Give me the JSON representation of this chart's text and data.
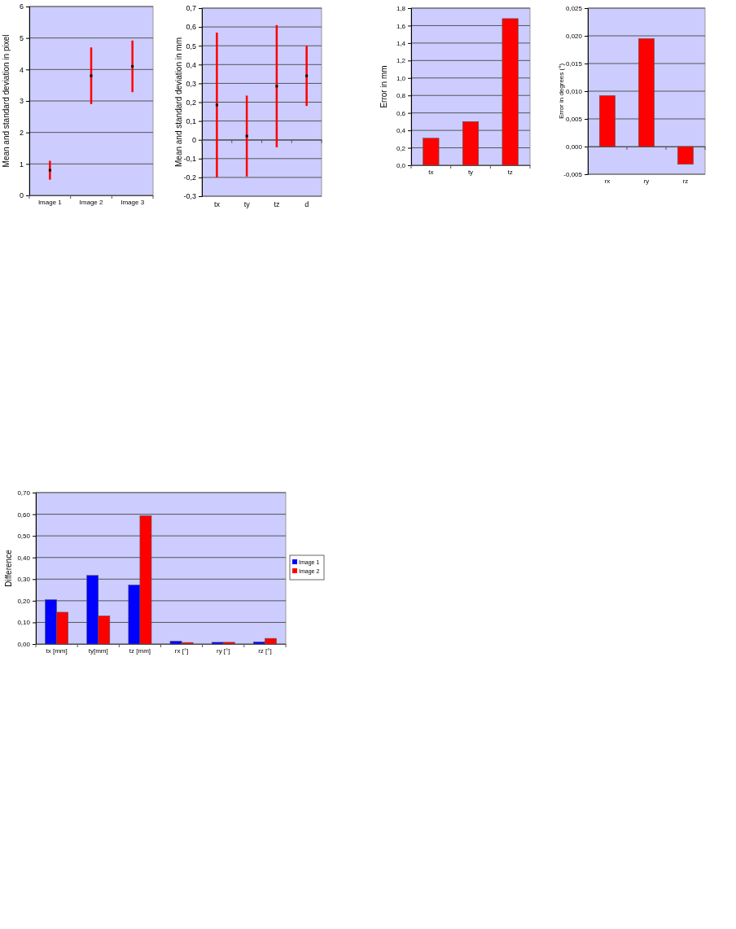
{
  "chart_data": [
    {
      "type": "scatter",
      "ylabel": "Mean and standard deviation in pixel",
      "categories": [
        "Image 1",
        "Image 2",
        "Image 3"
      ],
      "values": [
        0.8,
        3.8,
        4.1
      ],
      "errors": [
        0.3,
        0.9,
        0.82
      ],
      "color": "#000000",
      "marker": "square",
      "ylim": [
        0,
        6
      ],
      "yticks": [
        0,
        1,
        2,
        3,
        4,
        5,
        6
      ],
      "grid": "y"
    },
    {
      "type": "scatter",
      "ylabel": "Mean and standard deviation in mm",
      "categories": [
        "tx",
        "ty",
        "tz",
        "d"
      ],
      "values": [
        0.185,
        0.02,
        0.285,
        0.34
      ],
      "errors": [
        0.385,
        0.215,
        0.325,
        0.16
      ],
      "color": "#000000",
      "marker": "square",
      "ylim": [
        -0.3,
        0.7
      ],
      "yticks": [
        {
          "value": -0.3,
          "label": "-0,3"
        },
        {
          "value": -0.2,
          "label": "-0,2"
        },
        {
          "value": -0.1,
          "label": "-0,1"
        },
        0,
        {
          "value": 0.1,
          "label": "0,1"
        },
        {
          "value": 0.2,
          "label": "0,2"
        },
        {
          "value": 0.3,
          "label": "0,3"
        },
        {
          "value": 0.4,
          "label": "0,4"
        },
        {
          "value": 0.5,
          "label": "0,5"
        },
        {
          "value": 0.6,
          "label": "0,6"
        },
        {
          "value": 0.7,
          "label": "0,7"
        }
      ],
      "grid": "y"
    },
    {
      "type": "bar",
      "ylabel": "Error in mm",
      "categories": [
        "tx",
        "ty",
        "tz"
      ],
      "values": [
        0.31,
        0.5,
        1.68
      ],
      "color": "#ff0000",
      "ylim": [
        0,
        1.8
      ],
      "yticks": [
        {
          "value": 0,
          "label": "0,0"
        },
        {
          "value": 0.2,
          "label": "0,2"
        },
        {
          "value": 0.4,
          "label": "0,4"
        },
        {
          "value": 0.6,
          "label": "0,6"
        },
        {
          "value": 0.8,
          "label": "0,8"
        },
        {
          "value": 1,
          "label": "1,0"
        },
        {
          "value": 1.2,
          "label": "1,2"
        },
        {
          "value": 1.4,
          "label": "1,4"
        },
        {
          "value": 1.6,
          "label": "1,6"
        },
        {
          "value": 1.8,
          "label": "1,8"
        }
      ],
      "grid": "y"
    },
    {
      "type": "bar",
      "ylabel": "Error in degrees (°)",
      "categories": [
        "rx",
        "ry",
        "rz"
      ],
      "values": [
        0.0092,
        0.0195,
        -0.0032
      ],
      "color": "#ff0000",
      "ylim": [
        -0.005,
        0.025
      ],
      "yticks": [
        {
          "value": -0.005,
          "label": "-0,005"
        },
        {
          "value": 0,
          "label": "0,000"
        },
        {
          "value": 0.005,
          "label": "0,005"
        },
        {
          "value": 0.01,
          "label": "0,010"
        },
        {
          "value": 0.015,
          "label": "0,015"
        },
        {
          "value": 0.02,
          "label": "0,020"
        },
        {
          "value": 0.025,
          "label": "0,025"
        }
      ],
      "grid": "y"
    },
    {
      "type": "bar",
      "ylabel": "Difference",
      "categories": [
        "tx [mm]",
        "ty[mm]",
        "tz [mm]",
        "rx [°]",
        "ry [°]",
        "rz [°]"
      ],
      "series": [
        {
          "name": "Image 1",
          "color": "#0000ff",
          "values": [
            0.205,
            0.317,
            0.273,
            0.013,
            0.008,
            0.01
          ]
        },
        {
          "name": "Image 2",
          "color": "#ff0000",
          "values": [
            0.147,
            0.13,
            0.593,
            0.007,
            0.008,
            0.026
          ]
        }
      ],
      "ylim": [
        0,
        0.7
      ],
      "yticks": [
        {
          "value": 0,
          "label": "0,00"
        },
        {
          "value": 0.1,
          "label": "0,10"
        },
        {
          "value": 0.2,
          "label": "0,20"
        },
        {
          "value": 0.3,
          "label": "0,30"
        },
        {
          "value": 0.4,
          "label": "0,40"
        },
        {
          "value": 0.5,
          "label": "0,50"
        },
        {
          "value": 0.6,
          "label": "0,60"
        },
        {
          "value": 0.7,
          "label": "0,70"
        }
      ],
      "grid": "y",
      "legend": "right"
    }
  ]
}
